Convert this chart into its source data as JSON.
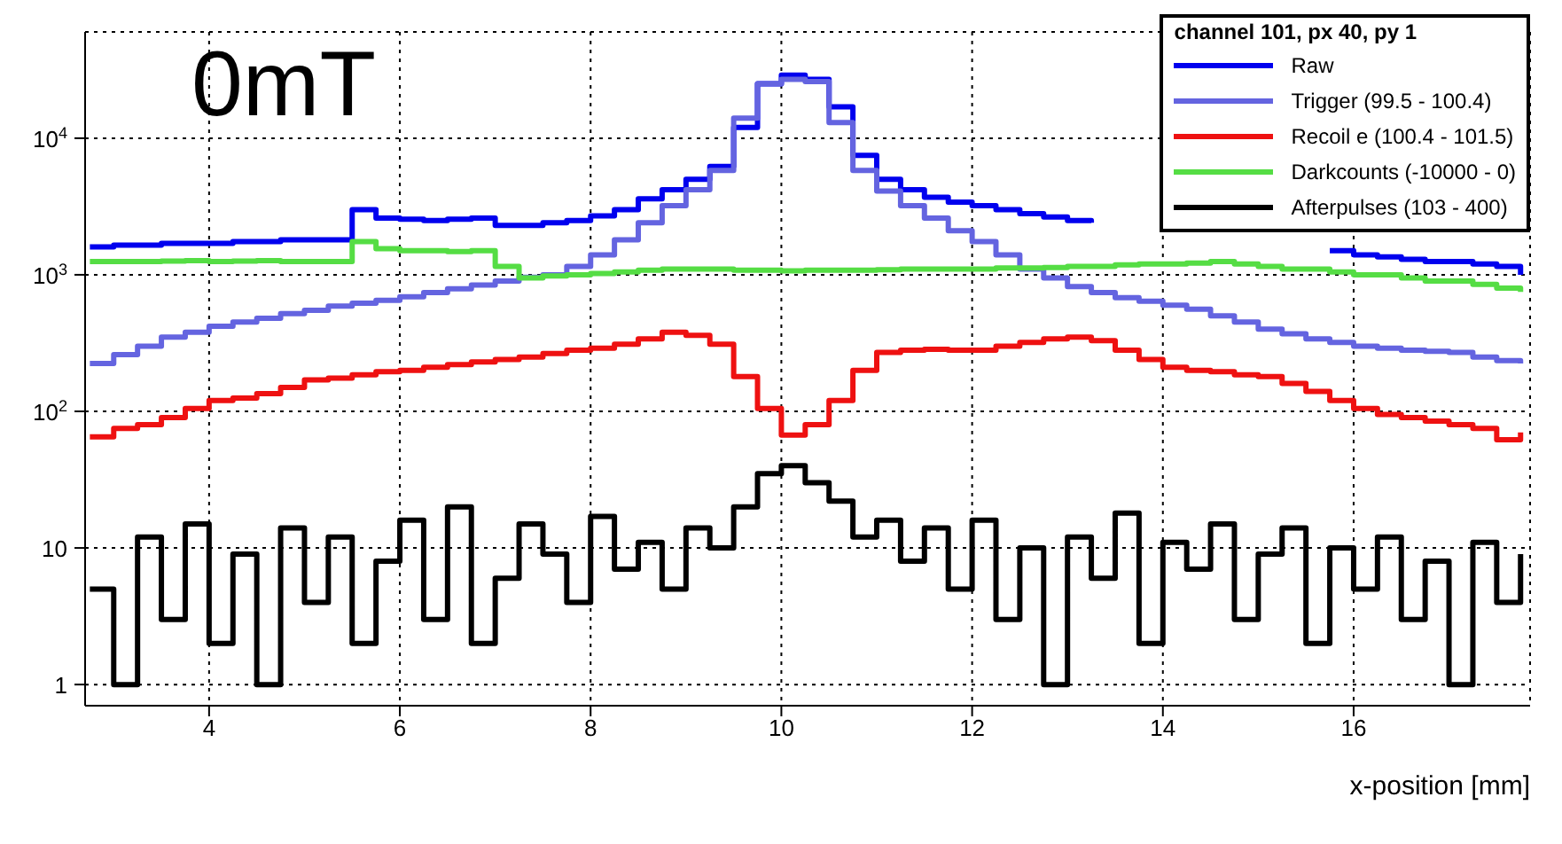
{
  "chart_data": {
    "type": "step",
    "legend_title": "channel 101, px 40, py 1",
    "xlabel": "x-position  [mm]",
    "annotations": [
      "0mT"
    ],
    "x": [
      2.75,
      3,
      3.25,
      3.5,
      3.75,
      4,
      4.25,
      4.5,
      4.75,
      5,
      5.25,
      5.5,
      5.75,
      6,
      6.25,
      6.5,
      6.75,
      7,
      7.25,
      7.5,
      7.75,
      8,
      8.25,
      8.5,
      8.75,
      9,
      9.25,
      9.5,
      9.75,
      10,
      10.25,
      10.5,
      10.75,
      11,
      11.25,
      11.5,
      11.75,
      12,
      12.25,
      12.5,
      12.75,
      13,
      13.25,
      13.5,
      13.75,
      14,
      14.25,
      14.5,
      14.75,
      15,
      15.25,
      15.5,
      15.75,
      16,
      16.25,
      16.5,
      16.75,
      17,
      17.25,
      17.5,
      17.75
    ],
    "series": [
      {
        "name": "Raw",
        "color": "#0000ee",
        "values": [
          1600,
          1650,
          1650,
          1700,
          1700,
          1700,
          1750,
          1750,
          1800,
          1800,
          1800,
          3000,
          2600,
          2550,
          2500,
          2550,
          2600,
          2300,
          2300,
          2400,
          2500,
          2700,
          3000,
          3600,
          4200,
          5000,
          6200,
          12000,
          25000,
          29000,
          27000,
          17000,
          7500,
          5000,
          4200,
          3700,
          3400,
          3200,
          3000,
          2800,
          2650,
          2500,
          2400,
          null,
          null,
          null,
          null,
          null,
          null,
          null,
          null,
          null,
          1500,
          1400,
          1350,
          1300,
          1250,
          1250,
          1200,
          1150,
          1000
        ]
      },
      {
        "name": "Trigger (99.5 - 100.4)",
        "color": "#6464e0",
        "values": [
          224,
          260,
          300,
          350,
          380,
          420,
          450,
          480,
          520,
          550,
          590,
          620,
          650,
          690,
          740,
          790,
          840,
          900,
          960,
          1000,
          1150,
          1400,
          1800,
          2400,
          3200,
          4200,
          5800,
          14000,
          25000,
          27000,
          26000,
          13000,
          5800,
          4100,
          3200,
          2600,
          2100,
          1750,
          1400,
          1100,
          950,
          820,
          740,
          680,
          640,
          600,
          560,
          500,
          450,
          400,
          370,
          340,
          320,
          300,
          290,
          280,
          275,
          270,
          250,
          235,
          224
        ]
      },
      {
        "name": "Recoil e (100.4 - 101.5)",
        "color": "#ee1111",
        "values": [
          65,
          75,
          80,
          90,
          105,
          120,
          125,
          135,
          150,
          170,
          175,
          185,
          195,
          200,
          210,
          220,
          230,
          240,
          250,
          265,
          280,
          290,
          310,
          340,
          380,
          360,
          310,
          180,
          105,
          67,
          80,
          120,
          200,
          270,
          280,
          285,
          280,
          280,
          300,
          320,
          340,
          350,
          330,
          280,
          240,
          210,
          200,
          195,
          185,
          180,
          160,
          140,
          120,
          105,
          95,
          90,
          85,
          80,
          75,
          62,
          70
        ]
      },
      {
        "name": "Darkcounts (-10000 - 0)",
        "color": "#55dd44",
        "values": [
          1250,
          1250,
          1250,
          1260,
          1270,
          1250,
          1260,
          1270,
          1250,
          1250,
          1250,
          1750,
          1550,
          1500,
          1500,
          1480,
          1500,
          1150,
          950,
          980,
          1000,
          1020,
          1050,
          1080,
          1100,
          1100,
          1100,
          1080,
          1080,
          1070,
          1080,
          1080,
          1080,
          1090,
          1100,
          1100,
          1100,
          1100,
          1120,
          1120,
          1130,
          1150,
          1150,
          1180,
          1200,
          1200,
          1220,
          1250,
          1200,
          1150,
          1100,
          1100,
          1050,
          1000,
          1000,
          950,
          900,
          900,
          850,
          800,
          750
        ]
      },
      {
        "name": "Afterpulses (103 - 400)",
        "color": "#000000",
        "values": [
          5,
          1,
          12,
          3,
          15,
          2,
          9,
          1,
          14,
          4,
          12,
          2,
          8,
          16,
          3,
          20,
          2,
          6,
          15,
          9,
          4,
          17,
          7,
          11,
          5,
          14,
          10,
          20,
          35,
          40,
          30,
          22,
          12,
          16,
          8,
          14,
          5,
          16,
          3,
          10,
          1,
          12,
          6,
          18,
          2,
          11,
          7,
          15,
          3,
          9,
          14,
          2,
          10,
          5,
          12,
          3,
          8,
          1,
          11,
          4,
          9
        ]
      }
    ],
    "xlim": [
      2.7,
      17.85
    ],
    "xticks": [
      4,
      6,
      8,
      10,
      12,
      14,
      16
    ],
    "ylim": [
      0.7,
      60000
    ],
    "yticks": [
      1,
      10,
      {
        "value": 100,
        "label": "10$^{2}$"
      },
      {
        "value": 1000,
        "label": "10$^{3}$"
      },
      {
        "value": 10000,
        "label": "10$^{4}$"
      }
    ],
    "log": true,
    "grid": true,
    "legend": "top right"
  }
}
